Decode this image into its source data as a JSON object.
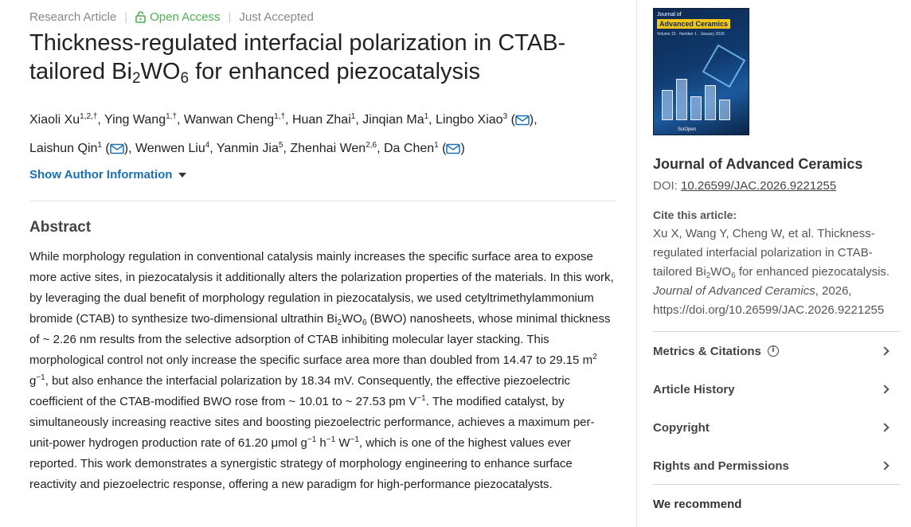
{
  "meta": {
    "article_type": "Research Article",
    "open_access": "Open Access",
    "status": "Just Accepted"
  },
  "title": {
    "part1": "Thickness-regulated interfacial polarization in CTAB-tailored Bi",
    "sub1": "2",
    "part2": "WO",
    "sub2": "6",
    "part3": " for enhanced piezocatalysis"
  },
  "authors": [
    {
      "name": "Xiaoli Xu",
      "aff": "1,2,†"
    },
    {
      "name": "Ying Wang",
      "aff": "1,†"
    },
    {
      "name": "Wanwan Cheng",
      "aff": "1,†"
    },
    {
      "name": "Huan Zhai",
      "aff": "1"
    },
    {
      "name": "Jinqian Ma",
      "aff": "1"
    },
    {
      "name": "Lingbo Xiao",
      "aff": "3"
    },
    {
      "name": "Laishun Qin",
      "aff": "1"
    },
    {
      "name": "Wenwen Liu",
      "aff": "4"
    },
    {
      "name": "Yanmin Jia",
      "aff": "5"
    },
    {
      "name": "Zhenhai Wen",
      "aff": "2,6"
    },
    {
      "name": "Da Chen",
      "aff": "1"
    }
  ],
  "show_author_info": "Show Author Information",
  "abstract": {
    "heading": "Abstract",
    "t1": "While morphology regulation in conventional catalysis mainly increases the specific surface area to expose more active sites, in piezocatalysis it additionally alters the polarization properties of the materials. In this work, by leveraging the dual benefit of morphology regulation in piezocatalysis, we used cetyltrimethylammonium bromide (CTAB) to synthesize two-dimensional ultrathin Bi",
    "sub_a": "2",
    "t2": "WO",
    "sub_b": "6",
    "t3": " (BWO) nanosheets, whose minimal thickness of ~ 2.26 nm results from the selective adsorption of CTAB inhibiting molecular layer stacking. This morphological control not only increase the specific surface area more than doubled from 14.47 to 29.15 m",
    "sup_a": "2",
    "t4": " g",
    "sup_b": "−1",
    "t5": ", but also enhance the interfacial polarization by 18.34 mV. Consequently, the effective piezoelectric coefficient of the CTAB-modified BWO rose from ~ 10.01 to ~ 27.53 pm V",
    "sup_c": "−1",
    "t6": ". The modified catalyst, by simultaneously increasing reactive sites and boosting piezoelectric performance, achieves a maximum per-unit-power hydrogen production rate of 61.20 μmol g",
    "sup_d": "−1",
    "t7": " h",
    "sup_e": "−1",
    "t8": " W",
    "sup_f": "−1",
    "t9": ", which is one of the highest values ever reported. This work demonstrates a synergistic strategy of morphology engineering to enhance surface reactivity and piezoelectric response, offering a new paradigm for high-performance piezocatalysts."
  },
  "sidebar": {
    "cover": {
      "top_text": "Journal of",
      "name": "Advanced Ceramics",
      "vol": "Volume 15 · Number 1 · January 2026"
    },
    "journal_title": "Journal of Advanced Ceramics",
    "doi_label": "DOI:",
    "doi_value": "10.26599/JAC.2026.9221255",
    "cite_heading": "Cite this article:",
    "cite": {
      "c1": "Xu X, Wang Y, Cheng W, et al. Thickness-regulated interfacial polarization in CTAB-tailored Bi",
      "sub1": "2",
      "c2": "WO",
      "sub2": "6",
      "c3": " for enhanced piezocatalysis. ",
      "journal": "Journal of Advanced Ceramics",
      "c4": ", 2026, https://doi.org/10.26599/JAC.2026.9221255"
    },
    "sections": [
      {
        "label": "Metrics & Citations"
      },
      {
        "label": "Article History"
      },
      {
        "label": "Copyright"
      },
      {
        "label": "Rights and Permissions"
      }
    ],
    "we_recommend": "We recommend"
  },
  "colors": {
    "link": "#1a6fb5",
    "open_access": "#4caf50"
  }
}
